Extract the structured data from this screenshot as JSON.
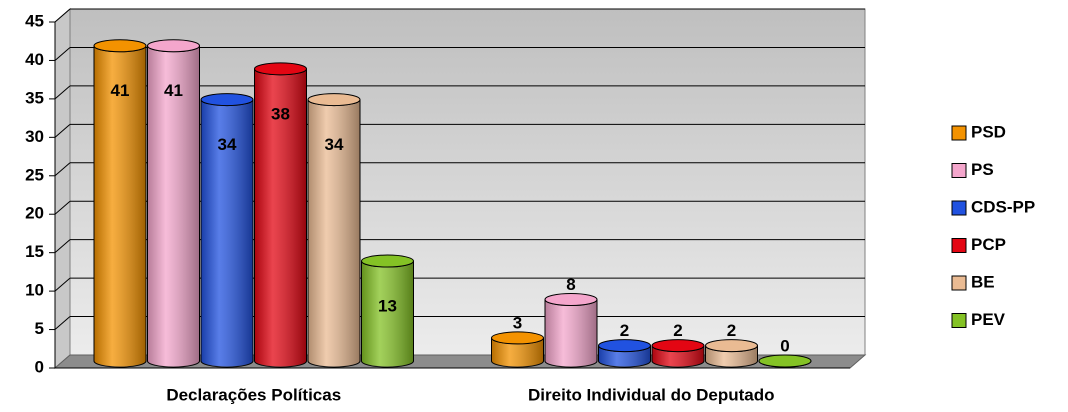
{
  "chart_data": {
    "type": "bar3d",
    "categories": [
      "Declarações Políticas",
      "Direito Individual do Deputado"
    ],
    "series": [
      {
        "name": "PSD",
        "color": "#f39200",
        "values": [
          41,
          3
        ]
      },
      {
        "name": "PS",
        "color": "#f4a6cc",
        "values": [
          41,
          8
        ]
      },
      {
        "name": "CDS-PP",
        "color": "#2152e0",
        "values": [
          34,
          2
        ]
      },
      {
        "name": "PCP",
        "color": "#e30613",
        "values": [
          38,
          2
        ]
      },
      {
        "name": "BE",
        "color": "#eabb93",
        "values": [
          34,
          2
        ]
      },
      {
        "name": "PEV",
        "color": "#84c225",
        "values": [
          13,
          0
        ]
      }
    ],
    "ylim": [
      0,
      45
    ],
    "yticks": [
      0,
      5,
      10,
      15,
      20,
      25,
      30,
      35,
      40,
      45
    ],
    "grid": true,
    "legend": "right"
  }
}
